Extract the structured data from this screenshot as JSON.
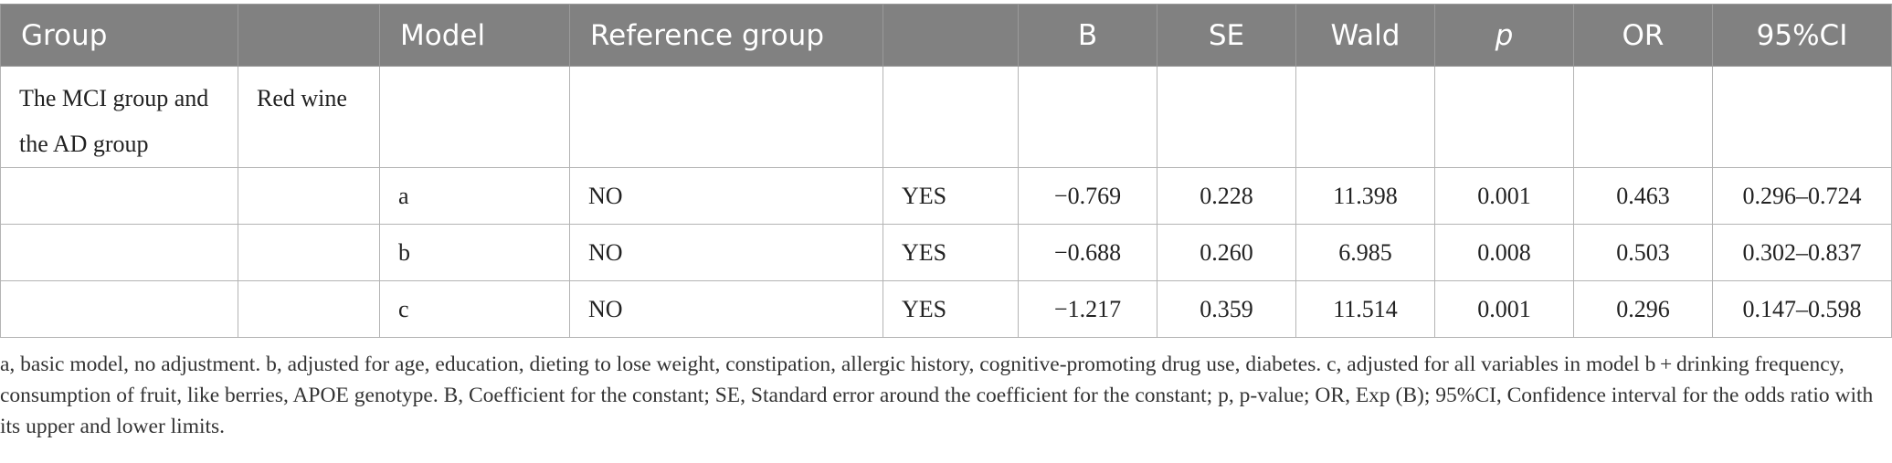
{
  "table": {
    "headers": [
      "Group",
      "",
      "Model",
      "Reference group",
      "",
      "B",
      "SE",
      "Wald",
      "p",
      "OR",
      "95%CI"
    ],
    "group_row": {
      "group": "The MCI group and the AD group",
      "variable": "Red wine"
    },
    "rows": [
      {
        "model": "a",
        "category": "NO",
        "reference": "YES",
        "b": "−0.769",
        "se": "0.228",
        "wald": "11.398",
        "p": "0.001",
        "or": "0.463",
        "ci": "0.296–0.724"
      },
      {
        "model": "b",
        "category": "NO",
        "reference": "YES",
        "b": "−0.688",
        "se": "0.260",
        "wald": "6.985",
        "p": "0.008",
        "or": "0.503",
        "ci": "0.302–0.837"
      },
      {
        "model": "c",
        "category": "NO",
        "reference": "YES",
        "b": "−1.217",
        "se": "0.359",
        "wald": "11.514",
        "p": "0.001",
        "or": "0.296",
        "ci": "0.147–0.598"
      }
    ]
  },
  "footnote": "a, basic model, no adjustment. b, adjusted for age, education, dieting to lose weight, constipation, allergic history, cognitive-promoting drug use, diabetes. c, adjusted for all variables in model b + drinking frequency, consumption of fruit, like berries, APOE genotype. B, Coefficient for the constant; SE, Standard error around the coefficient for the constant; p, p-value; OR, Exp (B); 95%CI, Confidence interval for the odds ratio with its upper and lower limits."
}
